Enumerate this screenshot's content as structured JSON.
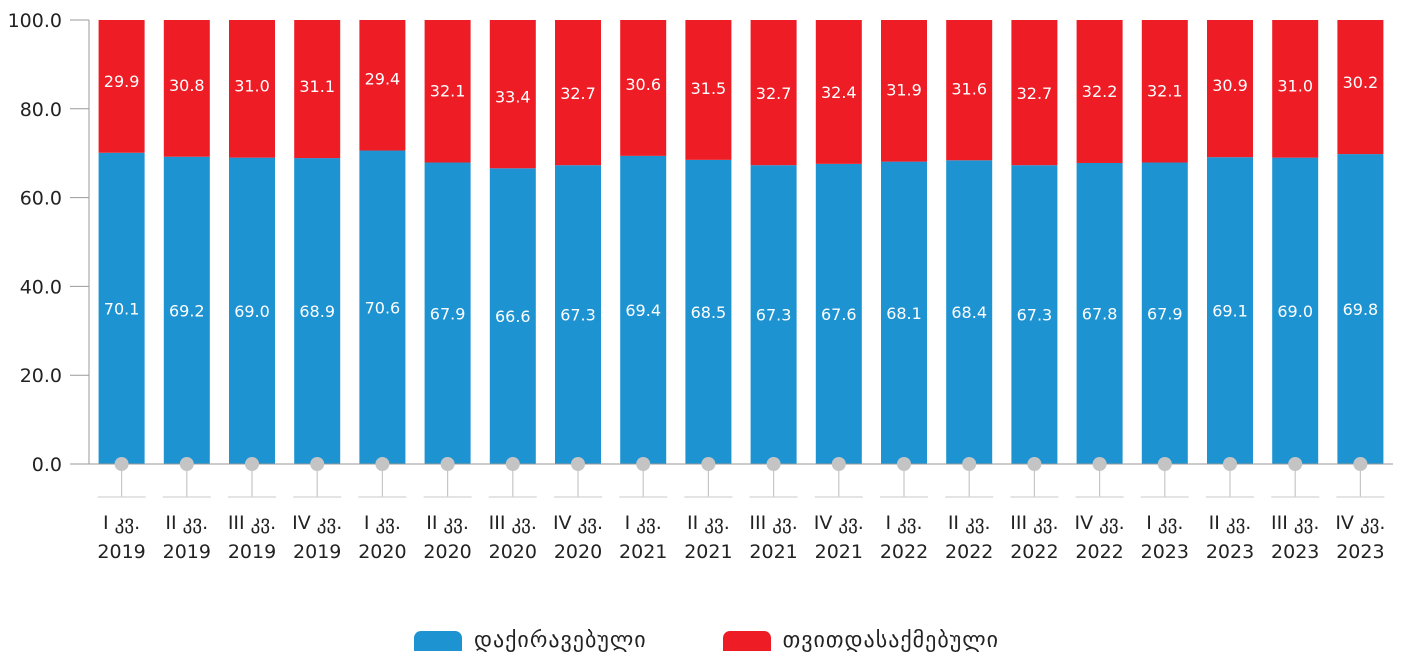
{
  "chart_data": {
    "type": "bar",
    "stacked": true,
    "categories": [
      [
        "I კვ.",
        "2019"
      ],
      [
        "II კვ.",
        "2019"
      ],
      [
        "III კვ.",
        "2019"
      ],
      [
        "IV კვ.",
        "2019"
      ],
      [
        "I კვ.",
        "2020"
      ],
      [
        "II კვ.",
        "2020"
      ],
      [
        "III კვ.",
        "2020"
      ],
      [
        "IV კვ.",
        "2020"
      ],
      [
        "I კვ.",
        "2021"
      ],
      [
        "II კვ.",
        "2021"
      ],
      [
        "III კვ.",
        "2021"
      ],
      [
        "IV კვ.",
        "2021"
      ],
      [
        "I კვ.",
        "2022"
      ],
      [
        "II კვ.",
        "2022"
      ],
      [
        "III კვ.",
        "2022"
      ],
      [
        "IV კვ.",
        "2022"
      ],
      [
        "I კვ.",
        "2023"
      ],
      [
        "II კვ.",
        "2023"
      ],
      [
        "III კვ.",
        "2023"
      ],
      [
        "IV კვ.",
        "2023"
      ]
    ],
    "series": [
      {
        "name": "დაქირავებული",
        "color": "#1e93d2",
        "values": [
          70.1,
          69.2,
          69.0,
          68.9,
          70.6,
          67.9,
          66.6,
          67.3,
          69.4,
          68.5,
          67.3,
          67.6,
          68.1,
          68.4,
          67.3,
          67.8,
          67.9,
          69.1,
          69.0,
          69.8
        ],
        "labels": [
          "70.1",
          "69.2",
          "69.0",
          "68.9",
          "70.6",
          "67.9",
          "66.6",
          "67.3",
          "69.4",
          "68.5",
          "67.3",
          "67.6",
          "68.1",
          "68.4",
          "67.3",
          "67.8",
          "67.9",
          "69.1",
          "69.0",
          "69.8"
        ]
      },
      {
        "name": "თვითდასაქმებული",
        "color": "#ee1c25",
        "values": [
          29.9,
          30.8,
          31.0,
          31.1,
          29.4,
          32.1,
          33.4,
          32.7,
          30.6,
          31.5,
          32.7,
          32.4,
          31.9,
          31.6,
          32.7,
          32.2,
          32.1,
          30.9,
          31.0,
          30.2
        ],
        "labels": [
          "29.9",
          "30.8",
          "31.0",
          "31.1",
          "29.4",
          "32.1",
          "33.4",
          "32.7",
          "30.6",
          "31.5",
          "32.7",
          "32.4",
          "31.9",
          "31.6",
          "32.7",
          "32.2",
          "32.1",
          "30.9",
          "31.0",
          "30.2"
        ]
      }
    ],
    "ylim": [
      0,
      100
    ],
    "yticks": [
      0,
      20,
      40,
      60,
      80,
      100
    ],
    "ytick_labels": [
      "0.0",
      "20.0",
      "40.0",
      "60.0",
      "80.0",
      "100.0"
    ],
    "grid": false,
    "legend": "bottom-center",
    "title": "",
    "xlabel": "",
    "ylabel": ""
  }
}
